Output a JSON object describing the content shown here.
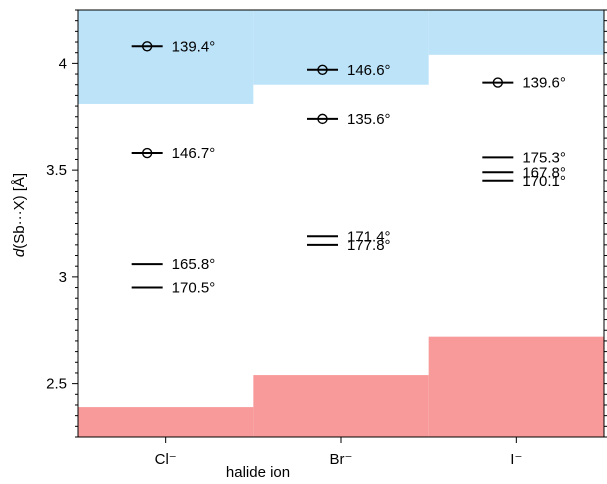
{
  "chart_data": {
    "type": "scatter",
    "categories": [
      "Cl⁻",
      "Br⁻",
      "I⁻"
    ],
    "xlabel": "halide ion",
    "ylabel_parts": [
      "d",
      "(Sb···X) [Å]"
    ],
    "ylim": [
      2.25,
      4.25
    ],
    "yticks": [
      2.5,
      3,
      3.5,
      4
    ],
    "ytick_labels": [
      "2.5",
      "3",
      "3.5",
      "4"
    ],
    "upper_regions": [
      {
        "category": "Cl⁻",
        "from": 3.81,
        "to": 4.25,
        "color": "#bde3f9"
      },
      {
        "category": "Br⁻",
        "from": 3.9,
        "to": 4.25,
        "color": "#bde3f9"
      },
      {
        "category": "I⁻",
        "from": 4.04,
        "to": 4.25,
        "color": "#bde3f9"
      }
    ],
    "lower_regions": [
      {
        "category": "Cl⁻",
        "from": 2.25,
        "to": 2.39,
        "color": "#f89a9a"
      },
      {
        "category": "Br⁻",
        "from": 2.25,
        "to": 2.54,
        "color": "#f89a9a"
      },
      {
        "category": "I⁻",
        "from": 2.25,
        "to": 2.72,
        "color": "#f89a9a"
      }
    ],
    "points": [
      {
        "category": "Cl⁻",
        "y": 4.08,
        "angle": "139.4°",
        "marker": "circle"
      },
      {
        "category": "Cl⁻",
        "y": 3.58,
        "angle": "146.7°",
        "marker": "circle"
      },
      {
        "category": "Cl⁻",
        "y": 3.06,
        "angle": "165.8°",
        "marker": "line"
      },
      {
        "category": "Cl⁻",
        "y": 2.95,
        "angle": "170.5°",
        "marker": "line"
      },
      {
        "category": "Br⁻",
        "y": 3.97,
        "angle": "146.6°",
        "marker": "circle"
      },
      {
        "category": "Br⁻",
        "y": 3.74,
        "angle": "135.6°",
        "marker": "circle"
      },
      {
        "category": "Br⁻",
        "y": 3.19,
        "angle": "171.4°",
        "marker": "line"
      },
      {
        "category": "Br⁻",
        "y": 3.15,
        "angle": "177.8°",
        "marker": "line"
      },
      {
        "category": "I⁻",
        "y": 3.91,
        "angle": "139.6°",
        "marker": "circle"
      },
      {
        "category": "I⁻",
        "y": 3.56,
        "angle": "175.3°",
        "marker": "line"
      },
      {
        "category": "I⁻",
        "y": 3.49,
        "angle": "167.8°",
        "marker": "line"
      },
      {
        "category": "I⁻",
        "y": 3.45,
        "angle": "170.1°",
        "marker": "line"
      }
    ]
  }
}
